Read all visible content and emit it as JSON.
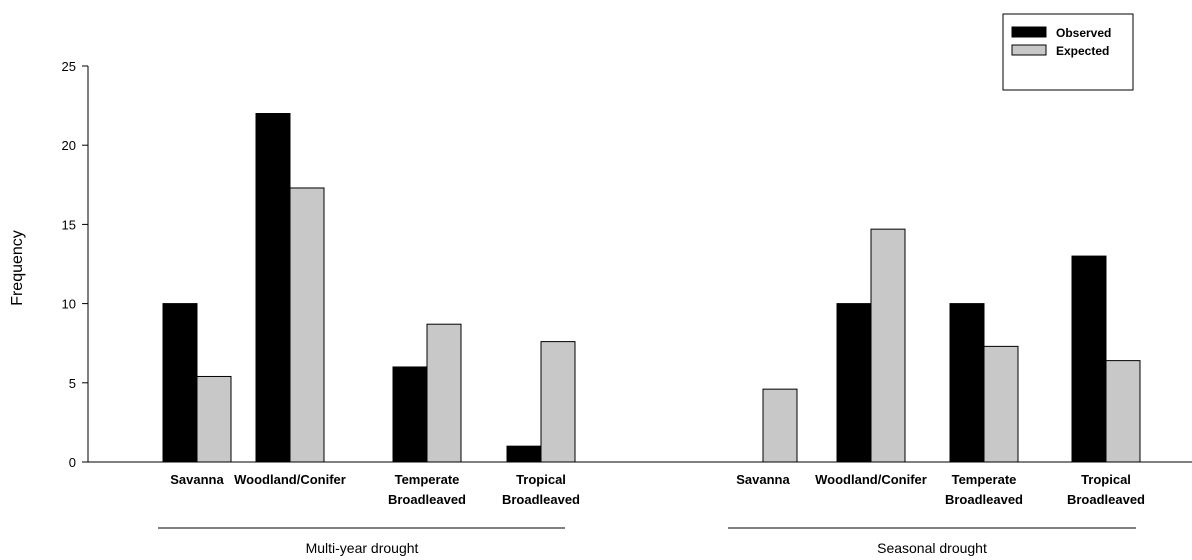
{
  "chart_data": {
    "type": "bar",
    "ylabel": "Frequency",
    "ylim": [
      0,
      25
    ],
    "yticks": [
      0,
      5,
      10,
      15,
      20,
      25
    ],
    "grid": false,
    "legend_position": "top-right",
    "colors": {
      "Observed": "#000000",
      "Expected": "#c8c8c8"
    },
    "groups": [
      {
        "name": "Multi-year drought",
        "categories": [
          [
            "Savanna"
          ],
          [
            "Woodland/Conifer"
          ],
          [
            "Temperate",
            "Broadleaved"
          ],
          [
            "Tropical",
            "Broadleaved"
          ]
        ],
        "series": [
          {
            "name": "Observed",
            "values": [
              10,
              22,
              6,
              1
            ]
          },
          {
            "name": "Expected",
            "values": [
              5.4,
              17.3,
              8.7,
              7.6
            ]
          }
        ]
      },
      {
        "name": "Seasonal drought",
        "categories": [
          [
            "Savanna"
          ],
          [
            "Woodland/Conifer"
          ],
          [
            "Temperate",
            "Broadleaved"
          ],
          [
            "Tropical",
            "Broadleaved"
          ]
        ],
        "series": [
          {
            "name": "Observed",
            "values": [
              0,
              10,
              10,
              13
            ]
          },
          {
            "name": "Expected",
            "values": [
              4.6,
              14.7,
              7.3,
              6.4
            ]
          }
        ]
      }
    ]
  }
}
